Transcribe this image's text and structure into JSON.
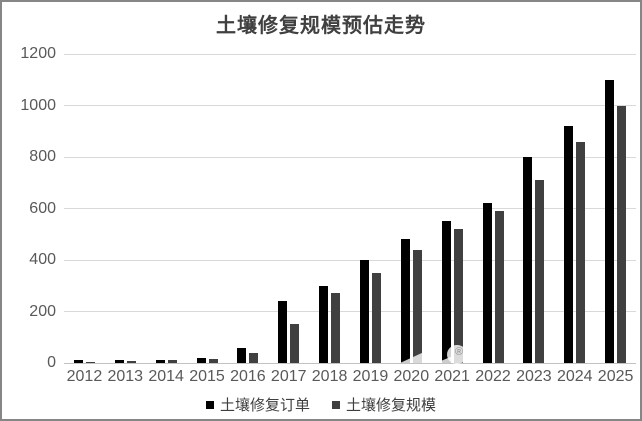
{
  "title": "土壤修复规模预估走势",
  "chart_data": {
    "type": "bar",
    "title": "土壤修复规模预估走势",
    "categories": [
      "2012",
      "2013",
      "2014",
      "2015",
      "2016",
      "2017",
      "2018",
      "2019",
      "2020",
      "2021",
      "2022",
      "2023",
      "2024",
      "2025"
    ],
    "series": [
      {
        "name": "土壤修复订单",
        "color": "#000000",
        "values": [
          10,
          10,
          10,
          20,
          60,
          240,
          300,
          400,
          480,
          550,
          620,
          800,
          920,
          1100
        ]
      },
      {
        "name": "土壤修复规模",
        "color": "#404040",
        "values": [
          5,
          8,
          10,
          15,
          40,
          150,
          270,
          350,
          440,
          520,
          590,
          710,
          860,
          1000
        ]
      }
    ],
    "xlabel": "",
    "ylabel": "",
    "ylim": [
      0,
      1200
    ],
    "yticks": [
      0,
      200,
      400,
      600,
      800,
      1000,
      1200
    ],
    "grid": true,
    "legend_position": "bottom"
  },
  "watermark": {
    "symbol": "®"
  },
  "colors": {
    "series_orders": "#000000",
    "series_scale": "#404040",
    "gridline": "#d9d9d9",
    "axis_text": "#595959",
    "title_text": "#404040",
    "border": "#868686"
  }
}
